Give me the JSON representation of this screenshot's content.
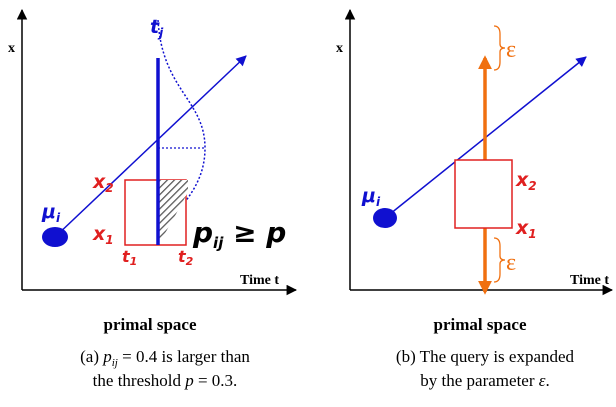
{
  "panel_a": {
    "y_axis": "x",
    "x_axis": "Time t",
    "mean": {
      "symbol": "μ",
      "sub": "i"
    },
    "time_point": {
      "symbol": "t",
      "sub": "j"
    },
    "x2": {
      "symbol": "x",
      "sub": "2"
    },
    "x1": {
      "symbol": "x",
      "sub": "1"
    },
    "t1": {
      "symbol": "t",
      "sub": "1"
    },
    "t2": {
      "symbol": "t",
      "sub": "2"
    },
    "probability": {
      "symbol": "p",
      "sub": "ij",
      "relation": " ≥ p"
    },
    "space_label": "primal space",
    "caption": [
      [
        "(a) ",
        "p",
        "ij",
        " = 0.4 is larger than"
      ],
      [
        "the threshold ",
        "p",
        " = 0.3."
      ]
    ]
  },
  "panel_b": {
    "y_axis": "x",
    "x_axis": "Time t",
    "mean": {
      "symbol": "μ",
      "sub": "i"
    },
    "x2": {
      "symbol": "x",
      "sub": "2"
    },
    "x1": {
      "symbol": "x",
      "sub": "1"
    },
    "epsilon": "ε",
    "space_label": "primal space",
    "caption": [
      "(b) The query is expanded",
      [
        "by the parameter ",
        "ε",
        "."
      ]
    ]
  }
}
